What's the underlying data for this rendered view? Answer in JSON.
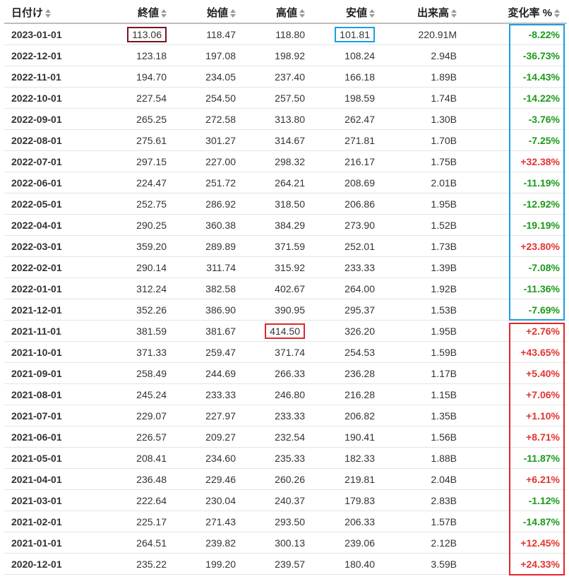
{
  "headers": {
    "date": "日付け",
    "close": "終値",
    "open": "始値",
    "high": "高値",
    "low": "安値",
    "volume": "出来高",
    "change": "変化率 %"
  },
  "rows": [
    {
      "date": "2023-01-01",
      "close": "113.06",
      "open": "118.47",
      "high": "118.80",
      "low": "101.81",
      "volume": "220.91M",
      "change": "-8.22%"
    },
    {
      "date": "2022-12-01",
      "close": "123.18",
      "open": "197.08",
      "high": "198.92",
      "low": "108.24",
      "volume": "2.94B",
      "change": "-36.73%"
    },
    {
      "date": "2022-11-01",
      "close": "194.70",
      "open": "234.05",
      "high": "237.40",
      "low": "166.18",
      "volume": "1.89B",
      "change": "-14.43%"
    },
    {
      "date": "2022-10-01",
      "close": "227.54",
      "open": "254.50",
      "high": "257.50",
      "low": "198.59",
      "volume": "1.74B",
      "change": "-14.22%"
    },
    {
      "date": "2022-09-01",
      "close": "265.25",
      "open": "272.58",
      "high": "313.80",
      "low": "262.47",
      "volume": "1.30B",
      "change": "-3.76%"
    },
    {
      "date": "2022-08-01",
      "close": "275.61",
      "open": "301.27",
      "high": "314.67",
      "low": "271.81",
      "volume": "1.70B",
      "change": "-7.25%"
    },
    {
      "date": "2022-07-01",
      "close": "297.15",
      "open": "227.00",
      "high": "298.32",
      "low": "216.17",
      "volume": "1.75B",
      "change": "+32.38%"
    },
    {
      "date": "2022-06-01",
      "close": "224.47",
      "open": "251.72",
      "high": "264.21",
      "low": "208.69",
      "volume": "2.01B",
      "change": "-11.19%"
    },
    {
      "date": "2022-05-01",
      "close": "252.75",
      "open": "286.92",
      "high": "318.50",
      "low": "206.86",
      "volume": "1.95B",
      "change": "-12.92%"
    },
    {
      "date": "2022-04-01",
      "close": "290.25",
      "open": "360.38",
      "high": "384.29",
      "low": "273.90",
      "volume": "1.52B",
      "change": "-19.19%"
    },
    {
      "date": "2022-03-01",
      "close": "359.20",
      "open": "289.89",
      "high": "371.59",
      "low": "252.01",
      "volume": "1.73B",
      "change": "+23.80%"
    },
    {
      "date": "2022-02-01",
      "close": "290.14",
      "open": "311.74",
      "high": "315.92",
      "low": "233.33",
      "volume": "1.39B",
      "change": "-7.08%"
    },
    {
      "date": "2022-01-01",
      "close": "312.24",
      "open": "382.58",
      "high": "402.67",
      "low": "264.00",
      "volume": "1.92B",
      "change": "-11.36%"
    },
    {
      "date": "2021-12-01",
      "close": "352.26",
      "open": "386.90",
      "high": "390.95",
      "low": "295.37",
      "volume": "1.53B",
      "change": "-7.69%"
    },
    {
      "date": "2021-11-01",
      "close": "381.59",
      "open": "381.67",
      "high": "414.50",
      "low": "326.20",
      "volume": "1.95B",
      "change": "+2.76%"
    },
    {
      "date": "2021-10-01",
      "close": "371.33",
      "open": "259.47",
      "high": "371.74",
      "low": "254.53",
      "volume": "1.59B",
      "change": "+43.65%"
    },
    {
      "date": "2021-09-01",
      "close": "258.49",
      "open": "244.69",
      "high": "266.33",
      "low": "236.28",
      "volume": "1.17B",
      "change": "+5.40%"
    },
    {
      "date": "2021-08-01",
      "close": "245.24",
      "open": "233.33",
      "high": "246.80",
      "low": "216.28",
      "volume": "1.15B",
      "change": "+7.06%"
    },
    {
      "date": "2021-07-01",
      "close": "229.07",
      "open": "227.97",
      "high": "233.33",
      "low": "206.82",
      "volume": "1.35B",
      "change": "+1.10%"
    },
    {
      "date": "2021-06-01",
      "close": "226.57",
      "open": "209.27",
      "high": "232.54",
      "low": "190.41",
      "volume": "1.56B",
      "change": "+8.71%"
    },
    {
      "date": "2021-05-01",
      "close": "208.41",
      "open": "234.60",
      "high": "235.33",
      "low": "182.33",
      "volume": "1.88B",
      "change": "-11.87%"
    },
    {
      "date": "2021-04-01",
      "close": "236.48",
      "open": "229.46",
      "high": "260.26",
      "low": "219.81",
      "volume": "2.04B",
      "change": "+6.21%"
    },
    {
      "date": "2021-03-01",
      "close": "222.64",
      "open": "230.04",
      "high": "240.37",
      "low": "179.83",
      "volume": "2.83B",
      "change": "-1.12%"
    },
    {
      "date": "2021-02-01",
      "close": "225.17",
      "open": "271.43",
      "high": "293.50",
      "low": "206.33",
      "volume": "1.57B",
      "change": "-14.87%"
    },
    {
      "date": "2021-01-01",
      "close": "264.51",
      "open": "239.82",
      "high": "300.13",
      "low": "239.06",
      "volume": "2.12B",
      "change": "+12.45%"
    },
    {
      "date": "2020-12-01",
      "close": "235.22",
      "open": "199.20",
      "high": "239.57",
      "low": "180.40",
      "volume": "3.59B",
      "change": "+24.33%"
    }
  ],
  "colors": {
    "up": "#e3342f",
    "down": "#1a9a1a",
    "box_dark": "#7a1420",
    "box_blue": "#1a9ee3",
    "box_red": "#e3242b"
  },
  "icons": {
    "sort": "sort-arrows-icon"
  }
}
